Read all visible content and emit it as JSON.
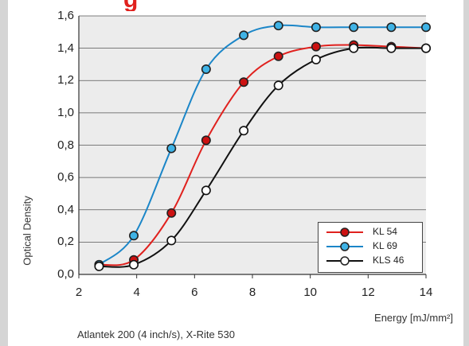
{
  "title": "g",
  "footnote": "Atlantek 200 (4 inch/s), X-Rite 530",
  "colors": {
    "background": "#d5d5d5",
    "plot_bg": "#ececec",
    "grid": "#555555",
    "title": "#e0211e"
  },
  "chart_data": {
    "type": "line",
    "title": "",
    "xlabel": "Energy [mJ/mm²]",
    "ylabel": "Optical Density",
    "xlim": [
      2,
      14
    ],
    "ylim": [
      0,
      1.6
    ],
    "x_ticks": [
      "2",
      "4",
      "6",
      "8",
      "10",
      "12",
      "14"
    ],
    "y_ticks": [
      "0,0",
      "0,2",
      "0,4",
      "0,6",
      "0,8",
      "1,0",
      "1,2",
      "1,4",
      "1,6"
    ],
    "grid": true,
    "legend_position": "bottom-right",
    "series": [
      {
        "name": "KL 54",
        "color": "#e0211e",
        "marker_fill": "#cc1111",
        "x": [
          2.7,
          3.9,
          5.2,
          6.4,
          7.7,
          8.9,
          10.2,
          11.5,
          12.8,
          14.0
        ],
        "y": [
          0.06,
          0.09,
          0.38,
          0.83,
          1.19,
          1.35,
          1.41,
          1.42,
          1.41,
          1.4
        ]
      },
      {
        "name": "KL 69",
        "color": "#1b86c8",
        "marker_fill": "#3fb3e6",
        "x": [
          2.7,
          3.9,
          5.2,
          6.4,
          7.7,
          8.9,
          10.2,
          11.5,
          12.8,
          14.0
        ],
        "y": [
          0.06,
          0.24,
          0.78,
          1.27,
          1.48,
          1.54,
          1.53,
          1.53,
          1.53,
          1.53
        ]
      },
      {
        "name": "KLS 46",
        "color": "#111111",
        "marker_fill": "#ffffff",
        "x": [
          2.7,
          3.9,
          5.2,
          6.4,
          7.7,
          8.9,
          10.2,
          11.5,
          12.8,
          14.0
        ],
        "y": [
          0.05,
          0.06,
          0.21,
          0.52,
          0.89,
          1.17,
          1.33,
          1.4,
          1.4,
          1.4
        ]
      }
    ]
  }
}
